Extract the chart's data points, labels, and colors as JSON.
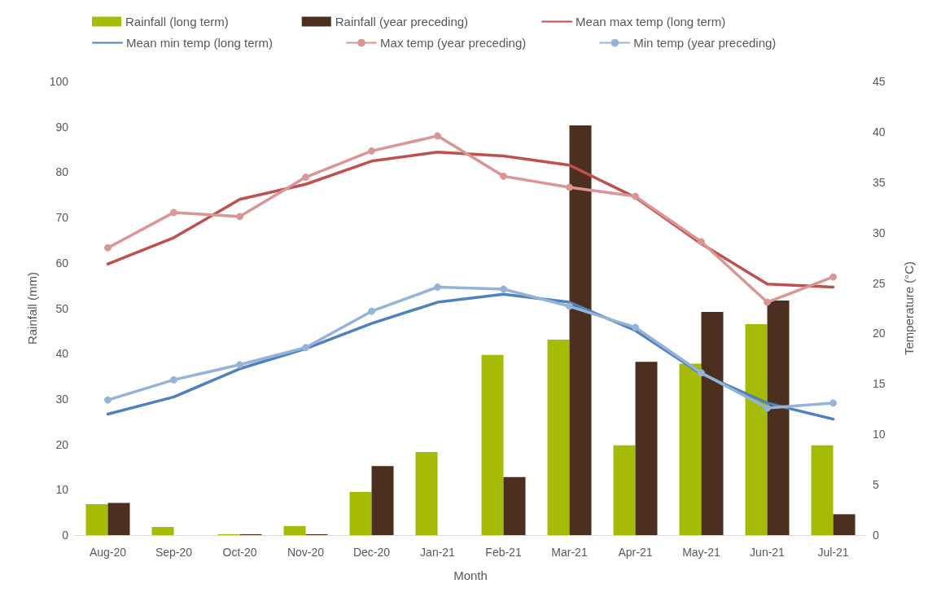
{
  "chart_data": {
    "type": "bar",
    "xlabel": "Month",
    "ylabel": "Rainfall (mm)",
    "y2label": "Temperature (°C)",
    "categories": [
      "Aug-20",
      "Sep-20",
      "Oct-20",
      "Nov-20",
      "Dec-20",
      "Jan-21",
      "Feb-21",
      "Mar-21",
      "Apr-21",
      "May-21",
      "Jun-21",
      "Jul-21"
    ],
    "series": [
      {
        "name": "Rainfall (long term)",
        "color": "#a5bb06",
        "values": [
          6.8,
          1.8,
          0.2,
          2.0,
          9.5,
          18.3,
          39.7,
          43.1,
          19.8,
          37.8,
          46.5,
          19.8
        ]
      },
      {
        "name": "Rainfall (year preceding)",
        "color": "#4d2f20",
        "values": [
          7.1,
          0,
          0.2,
          0.2,
          15.2,
          0,
          12.8,
          90.3,
          38.2,
          49.2,
          51.7,
          4.6
        ]
      },
      {
        "name": "Mean max temp (long term)",
        "type": "line",
        "axis": "y2",
        "color": "#c0504d",
        "marker": "none",
        "values": [
          26.9,
          29.5,
          33.3,
          34.8,
          37.1,
          38.0,
          37.6,
          36.7,
          33.5,
          28.9,
          24.9,
          24.6
        ]
      },
      {
        "name": "Mean min temp (long term)",
        "type": "line",
        "axis": "y2",
        "color": "#4f81bd",
        "marker": "none",
        "values": [
          12.0,
          13.7,
          16.5,
          18.5,
          21.0,
          23.1,
          23.9,
          23.1,
          20.3,
          16.0,
          13.1,
          11.5
        ]
      },
      {
        "name": "Max temp (year preceding)",
        "type": "line",
        "axis": "y2",
        "color": "#d99694",
        "marker": "circle",
        "values": [
          28.5,
          32.0,
          31.6,
          35.5,
          38.1,
          39.6,
          35.6,
          34.5,
          33.6,
          29.1,
          23.1,
          25.6
        ]
      },
      {
        "name": "Min temp (year preceding)",
        "type": "line",
        "axis": "y2",
        "color": "#95b3d7",
        "marker": "circle",
        "values": [
          13.4,
          15.4,
          16.9,
          18.6,
          22.2,
          24.6,
          24.4,
          22.7,
          20.6,
          16.1,
          12.6,
          13.1
        ]
      }
    ],
    "ylim": [
      0,
      100
    ],
    "yticks": [
      0,
      10,
      20,
      30,
      40,
      50,
      60,
      70,
      80,
      90,
      100
    ],
    "y2lim": [
      0,
      45
    ],
    "y2ticks": [
      0,
      5,
      10,
      15,
      20,
      25,
      30,
      35,
      40,
      45
    ],
    "grid": false,
    "legend": "top",
    "line_style": "solid"
  }
}
